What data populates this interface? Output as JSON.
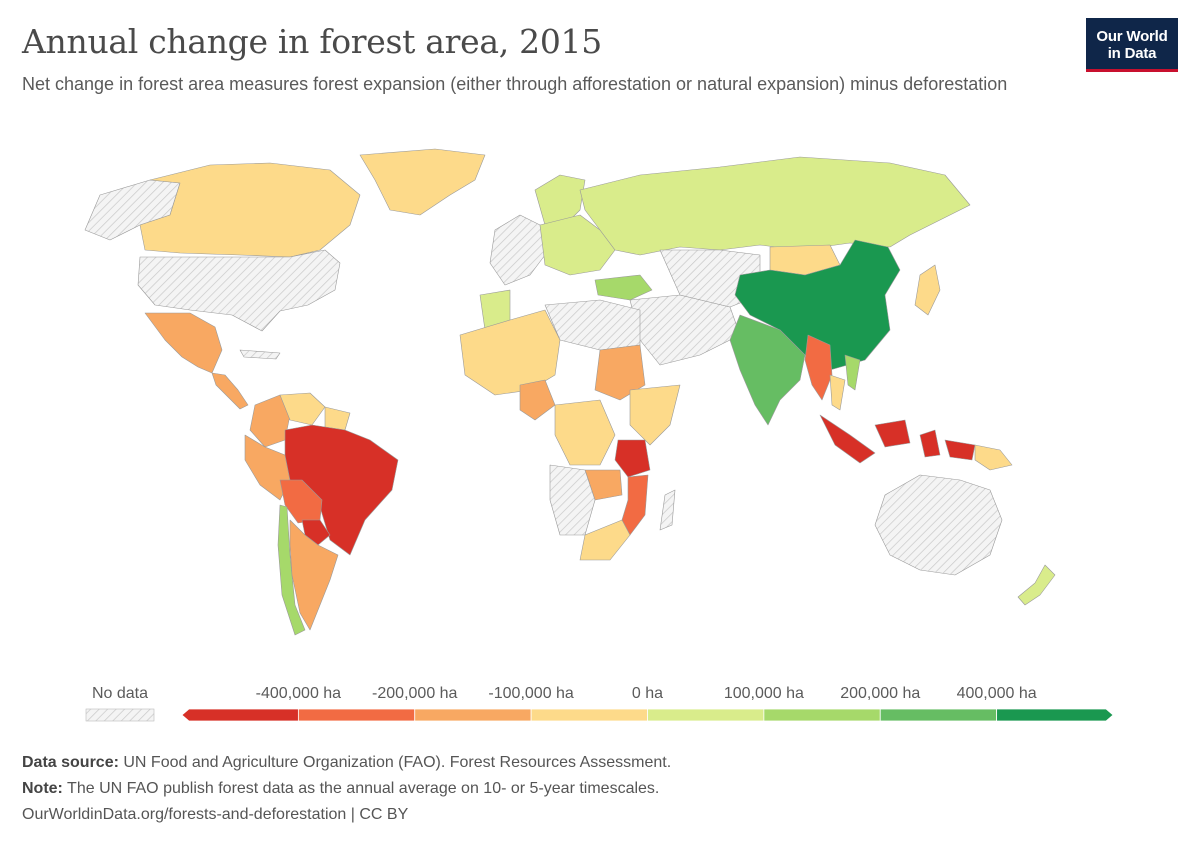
{
  "header": {
    "title": "Annual change in forest area, 2015",
    "subtitle": "Net change in forest area measures forest expansion (either through afforestation or natural expansion) minus deforestation",
    "logo_line1": "Our World",
    "logo_line2": "in Data"
  },
  "legend": {
    "no_data_label": "No data",
    "tick_labels": [
      "-400,000 ha",
      "-200,000 ha",
      "-100,000 ha",
      "0 ha",
      "100,000 ha",
      "200,000 ha",
      "400,000 ha"
    ],
    "bin_colors": [
      "#d73027",
      "#f26b43",
      "#f8a862",
      "#fdda8a",
      "#d9ec8b",
      "#a6d96a",
      "#66bd63",
      "#1a9850"
    ],
    "no_data_color": "#e6e6e6"
  },
  "map_colors": {
    "china": "#1a9850",
    "india": "#66bd63",
    "turkey": "#a6d96a",
    "russia": "#d9ec8b",
    "europe": "#d9ec8b",
    "scandinavia": "#d9ec8b",
    "morocco": "#d9ec8b",
    "chile": "#a6d96a",
    "nz": "#d9ec8b",
    "vietnam": "#a6d96a",
    "canada": "#fdda8a",
    "greenland": "#fdda8a",
    "mexico": "#f8a862",
    "central_america": "#f8a862",
    "colombia": "#f8a862",
    "venezuela": "#fdda8a",
    "guianas": "#fdda8a",
    "peru": "#f8a862",
    "brazil": "#d73027",
    "bolivia": "#f26b43",
    "paraguay": "#d73027",
    "argentina": "#f8a862",
    "west_africa": "#fdda8a",
    "nigeria": "#f8a862",
    "sudan": "#f8a862",
    "east_africa": "#fdda8a",
    "tanzania": "#d73027",
    "mozambique": "#f26b43",
    "zambia": "#f8a862",
    "southern_africa": "#fdda8a",
    "drc": "#fdda8a",
    "myanmar": "#f26b43",
    "indonesia": "#d73027",
    "png": "#fdda8a",
    "mongolia": "#fdda8a",
    "japan": "#fdda8a",
    "thailand": "#fdda8a",
    "nodata": "#e6e6e6"
  },
  "footer": {
    "source_label": "Data source:",
    "source_text": " UN Food and Agriculture Organization (FAO). Forest Resources Assessment.",
    "note_label": "Note:",
    "note_text": " The UN FAO publish forest data as the annual average on 10- or 5-year timescales.",
    "url_text": "OurWorldinData.org/forests-and-deforestation | CC BY"
  }
}
